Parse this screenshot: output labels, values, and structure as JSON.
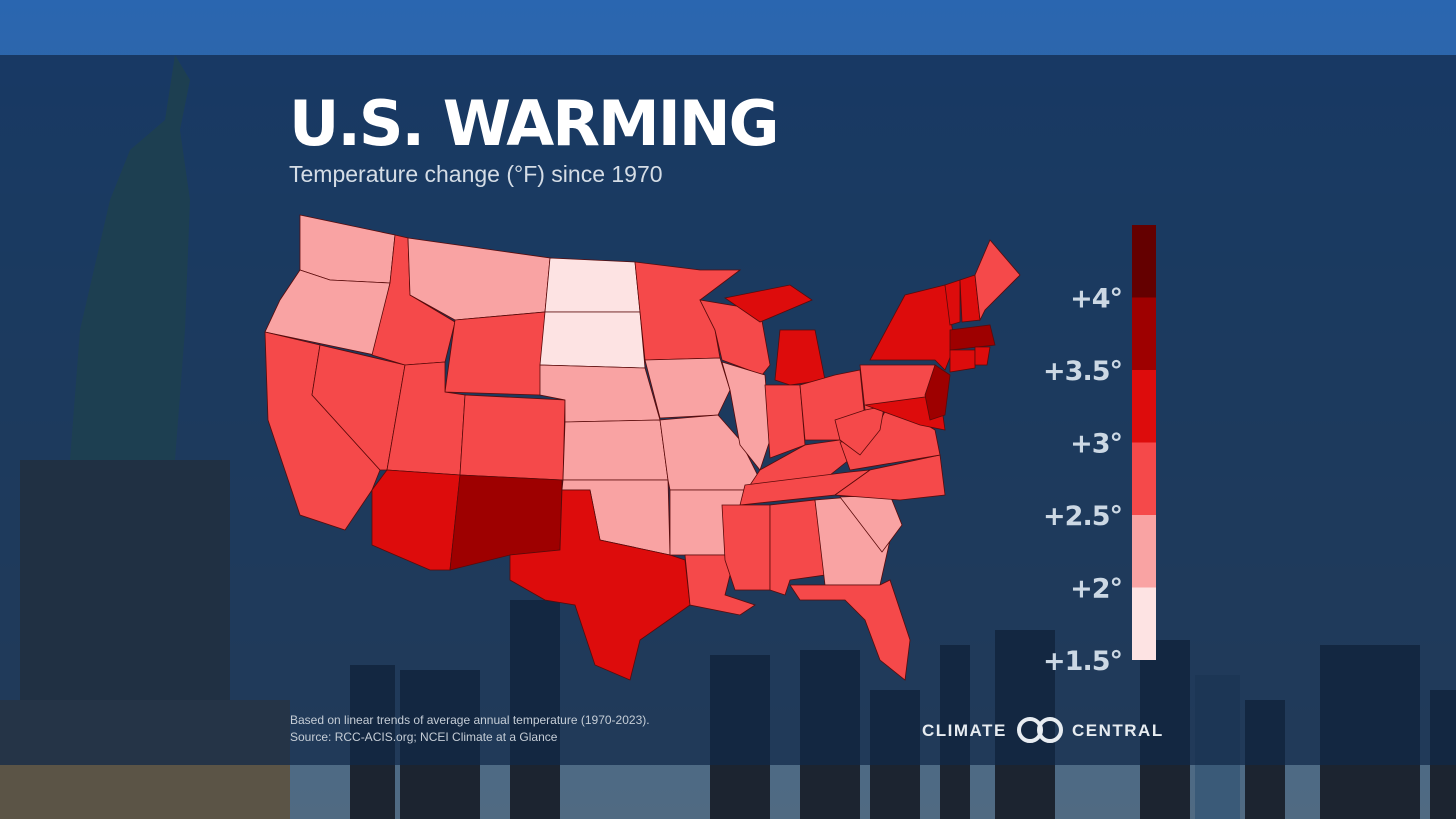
{
  "chart_data": {
    "type": "choropleth",
    "title": "U.S. WARMING",
    "subtitle": "Temperature change (°F) since 1970",
    "values": [
      2.2,
      2.2,
      2.7,
      2.7,
      2.7,
      2.2,
      2.7,
      2.7,
      3.2,
      2.7,
      3.7,
      1.8,
      1.8,
      2.2,
      2.2,
      2.2,
      3.2,
      2.7,
      2.2,
      2.2,
      2.2,
      2.7,
      2.7,
      2.2,
      3.2,
      2.7,
      2.7,
      2.7,
      2.7,
      2.7,
      2.7,
      2.2,
      2.7,
      2.2,
      2.7,
      2.7,
      2.7,
      2.7,
      3.2,
      3.2,
      3.7,
      3.2,
      3.2,
      2.7,
      3.7,
      3.2,
      3.2
    ],
    "legend": {
      "bins": [
        1.5,
        2,
        2.5,
        3,
        3.5,
        4,
        4.5
      ],
      "colors": [
        "#fde3e3",
        "#f9a3a3",
        "#f5494a",
        "#dd0c0c",
        "#9e0000",
        "#640000"
      ],
      "ylim": [
        1.5,
        4.5
      ],
      "ticks": [
        {
          "value": 4,
          "label": "+4°"
        },
        {
          "value": 3.5,
          "label": "+3.5°"
        },
        {
          "value": 3,
          "label": "+3°"
        },
        {
          "value": 2.5,
          "label": "+2.5°"
        },
        {
          "value": 2,
          "label": "+2°"
        },
        {
          "value": 1.5,
          "label": "+1.5°"
        }
      ]
    },
    "notes": [
      "Based on linear trends of average annual temperature (1970-2023).",
      "Source: RCC-ACIS.org; NCEI Climate at a Glance"
    ],
    "logo": [
      "CLIMATE",
      "CENTRAL"
    ]
  }
}
